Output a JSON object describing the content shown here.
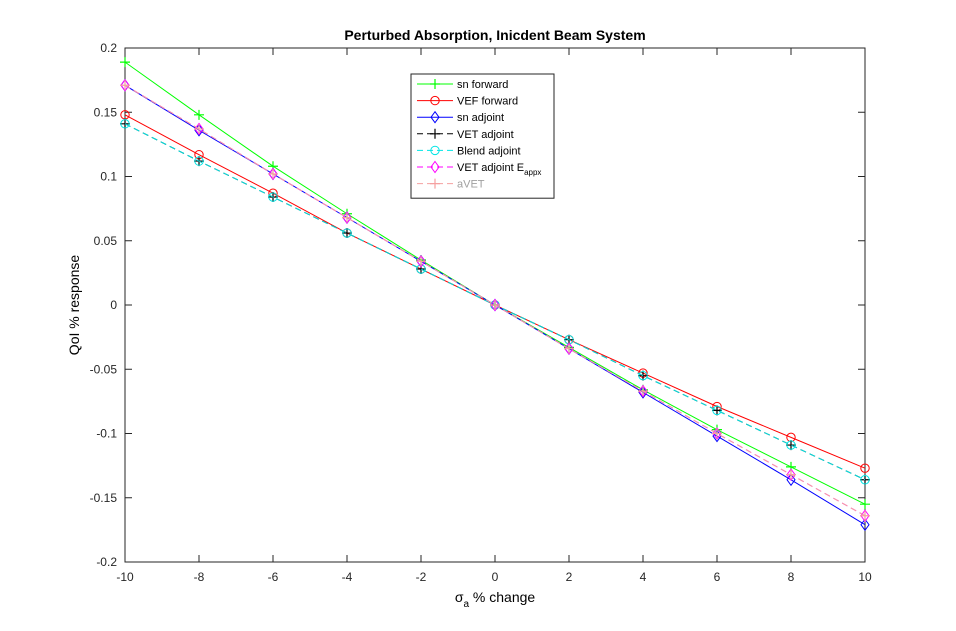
{
  "chart_data": {
    "type": "line",
    "title": "Perturbed Absorption, Inicdent Beam System",
    "xlabel": {
      "main": "σ",
      "sub": "a",
      "rest": " % change"
    },
    "ylabel": "QoI % response",
    "xlim": [
      -10,
      10
    ],
    "ylim": [
      -0.2,
      0.2
    ],
    "x_ticks": [
      -10,
      -8,
      -6,
      -4,
      -2,
      0,
      2,
      4,
      6,
      8,
      10
    ],
    "y_ticks": [
      -0.2,
      -0.15,
      -0.1,
      -0.05,
      0,
      0.05,
      0.1,
      0.15,
      0.2
    ],
    "x_tick_labels": [
      "-10",
      "-8",
      "-6",
      "-4",
      "-2",
      "0",
      "2",
      "4",
      "6",
      "8",
      "10"
    ],
    "y_tick_labels": [
      "-0.2",
      "-0.15",
      "-0.1",
      "-0.05",
      "0",
      "0.05",
      "0.1",
      "0.15",
      "0.2"
    ],
    "grid": false,
    "legend_position": "top-center",
    "x": [
      -10,
      -8,
      -6,
      -4,
      -2,
      0,
      2,
      4,
      6,
      8,
      10
    ],
    "series": [
      {
        "name": "sn forward",
        "color": "#00ff00",
        "dash": "solid",
        "marker": "plus",
        "values": [
          0.189,
          0.148,
          0.108,
          0.071,
          0.035,
          0,
          -0.033,
          -0.066,
          -0.097,
          -0.126,
          -0.155
        ]
      },
      {
        "name": "VEF forward",
        "color": "#ff0000",
        "dash": "solid",
        "marker": "circle",
        "values": [
          0.148,
          0.117,
          0.087,
          0.056,
          0.028,
          0,
          -0.027,
          -0.053,
          -0.079,
          -0.103,
          -0.127
        ]
      },
      {
        "name": "sn adjoint",
        "color": "#0000ff",
        "dash": "solid",
        "marker": "diamond",
        "values": [
          0.171,
          0.136,
          0.102,
          0.068,
          0.034,
          0,
          -0.034,
          -0.068,
          -0.102,
          -0.136,
          -0.171
        ]
      },
      {
        "name": "VET adjoint",
        "color": "#000000",
        "dash": "dashed",
        "marker": "plus",
        "values": [
          0.141,
          0.112,
          0.084,
          0.056,
          0.028,
          0,
          -0.027,
          -0.055,
          -0.082,
          -0.109,
          -0.136
        ]
      },
      {
        "name": "Blend adjoint",
        "color": "#00e5e5",
        "dash": "dashed",
        "marker": "circle",
        "values": [
          0.141,
          0.112,
          0.084,
          0.056,
          0.028,
          0,
          -0.027,
          -0.055,
          -0.082,
          -0.109,
          -0.136
        ]
      },
      {
        "name": "VET adjoint E",
        "name_sub": "appx",
        "color": "#ff00ff",
        "dash": "dashed",
        "marker": "diamond",
        "values": [
          0.171,
          0.137,
          0.102,
          0.068,
          0.034,
          0,
          -0.034,
          -0.067,
          -0.1,
          -0.132,
          -0.164
        ]
      },
      {
        "name": "aVET",
        "color": "#f5a0a0",
        "dash": "dashed",
        "marker": "plus",
        "label_color": "#a0a0a0",
        "values": [
          0.171,
          0.137,
          0.102,
          0.068,
          0.034,
          0,
          -0.034,
          -0.067,
          -0.1,
          -0.132,
          -0.164
        ]
      }
    ]
  }
}
